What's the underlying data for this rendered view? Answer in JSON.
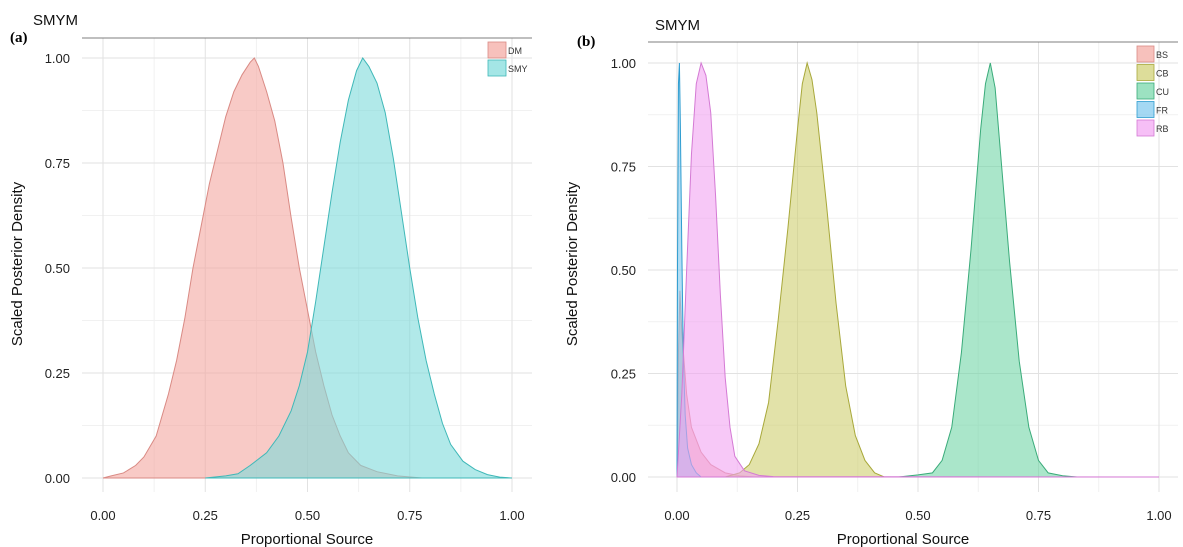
{
  "chart_data": [
    {
      "type": "area",
      "panel_label": "(a)",
      "title": "SMYM",
      "xlabel": "Proportional Source",
      "ylabel": "Scaled Posterior Density",
      "xlim": [
        0,
        1
      ],
      "ylim": [
        0,
        1
      ],
      "x_ticks": [
        "0.00",
        "0.25",
        "0.50",
        "0.75",
        "1.00"
      ],
      "y_ticks": [
        "0.00",
        "0.25",
        "0.50",
        "0.75",
        "1.00"
      ],
      "grid": true,
      "legend_position": "top-right",
      "series": [
        {
          "name": "DM",
          "fill": "#f4a6a0",
          "stroke": "#d98a84",
          "points": [
            [
              0.0,
              0.0
            ],
            [
              0.02,
              0.005
            ],
            [
              0.05,
              0.012
            ],
            [
              0.08,
              0.03
            ],
            [
              0.1,
              0.05
            ],
            [
              0.13,
              0.1
            ],
            [
              0.16,
              0.2
            ],
            [
              0.18,
              0.28
            ],
            [
              0.2,
              0.38
            ],
            [
              0.22,
              0.5
            ],
            [
              0.24,
              0.6
            ],
            [
              0.26,
              0.7
            ],
            [
              0.28,
              0.78
            ],
            [
              0.3,
              0.86
            ],
            [
              0.32,
              0.92
            ],
            [
              0.34,
              0.96
            ],
            [
              0.36,
              0.99
            ],
            [
              0.37,
              1.0
            ],
            [
              0.38,
              0.98
            ],
            [
              0.4,
              0.92
            ],
            [
              0.42,
              0.85
            ],
            [
              0.44,
              0.75
            ],
            [
              0.46,
              0.62
            ],
            [
              0.48,
              0.5
            ],
            [
              0.5,
              0.4
            ],
            [
              0.52,
              0.3
            ],
            [
              0.54,
              0.22
            ],
            [
              0.56,
              0.15
            ],
            [
              0.58,
              0.1
            ],
            [
              0.6,
              0.06
            ],
            [
              0.63,
              0.03
            ],
            [
              0.67,
              0.015
            ],
            [
              0.72,
              0.005
            ],
            [
              0.78,
              0.0
            ]
          ]
        },
        {
          "name": "SMY",
          "fill": "#7ddbdb",
          "stroke": "#3fb8b8",
          "points": [
            [
              0.25,
              0.0
            ],
            [
              0.3,
              0.005
            ],
            [
              0.33,
              0.01
            ],
            [
              0.36,
              0.03
            ],
            [
              0.4,
              0.06
            ],
            [
              0.43,
              0.1
            ],
            [
              0.46,
              0.16
            ],
            [
              0.48,
              0.22
            ],
            [
              0.5,
              0.3
            ],
            [
              0.52,
              0.42
            ],
            [
              0.54,
              0.55
            ],
            [
              0.56,
              0.68
            ],
            [
              0.58,
              0.8
            ],
            [
              0.6,
              0.9
            ],
            [
              0.62,
              0.97
            ],
            [
              0.635,
              1.0
            ],
            [
              0.65,
              0.98
            ],
            [
              0.67,
              0.94
            ],
            [
              0.69,
              0.87
            ],
            [
              0.71,
              0.76
            ],
            [
              0.73,
              0.63
            ],
            [
              0.75,
              0.5
            ],
            [
              0.77,
              0.38
            ],
            [
              0.79,
              0.28
            ],
            [
              0.81,
              0.2
            ],
            [
              0.83,
              0.13
            ],
            [
              0.85,
              0.08
            ],
            [
              0.88,
              0.04
            ],
            [
              0.91,
              0.02
            ],
            [
              0.94,
              0.008
            ],
            [
              0.97,
              0.002
            ],
            [
              1.0,
              0.0
            ]
          ]
        }
      ]
    },
    {
      "type": "area",
      "panel_label": "(b)",
      "title": "SMYM",
      "xlabel": "Proportional Source",
      "ylabel": "Scaled Posterior Density",
      "xlim": [
        0,
        1
      ],
      "ylim": [
        0,
        1
      ],
      "x_ticks": [
        "0.00",
        "0.25",
        "0.50",
        "0.75",
        "1.00"
      ],
      "y_ticks": [
        "0.00",
        "0.25",
        "0.50",
        "0.75",
        "1.00"
      ],
      "grid": true,
      "legend_position": "top-right",
      "series": [
        {
          "name": "BS",
          "fill": "#f4a6a0",
          "stroke": "#d98a84",
          "points": [
            [
              0.0,
              0.0
            ],
            [
              0.003,
              0.3
            ],
            [
              0.006,
              0.45
            ],
            [
              0.01,
              0.35
            ],
            [
              0.02,
              0.2
            ],
            [
              0.03,
              0.12
            ],
            [
              0.05,
              0.06
            ],
            [
              0.07,
              0.03
            ],
            [
              0.1,
              0.01
            ],
            [
              0.13,
              0.003
            ],
            [
              0.16,
              0.0
            ]
          ]
        },
        {
          "name": "CB",
          "fill": "#cfcf6f",
          "stroke": "#a8a83a",
          "points": [
            [
              0.1,
              0.0
            ],
            [
              0.13,
              0.01
            ],
            [
              0.15,
              0.03
            ],
            [
              0.17,
              0.08
            ],
            [
              0.19,
              0.18
            ],
            [
              0.21,
              0.38
            ],
            [
              0.23,
              0.6
            ],
            [
              0.25,
              0.84
            ],
            [
              0.26,
              0.95
            ],
            [
              0.27,
              1.0
            ],
            [
              0.28,
              0.96
            ],
            [
              0.29,
              0.88
            ],
            [
              0.31,
              0.66
            ],
            [
              0.33,
              0.42
            ],
            [
              0.35,
              0.22
            ],
            [
              0.37,
              0.1
            ],
            [
              0.39,
              0.04
            ],
            [
              0.41,
              0.01
            ],
            [
              0.43,
              0.0
            ]
          ]
        },
        {
          "name": "CU",
          "fill": "#72d6a6",
          "stroke": "#3aab7a",
          "points": [
            [
              0.46,
              0.0
            ],
            [
              0.5,
              0.005
            ],
            [
              0.53,
              0.01
            ],
            [
              0.55,
              0.04
            ],
            [
              0.57,
              0.12
            ],
            [
              0.59,
              0.3
            ],
            [
              0.61,
              0.55
            ],
            [
              0.63,
              0.84
            ],
            [
              0.64,
              0.95
            ],
            [
              0.65,
              1.0
            ],
            [
              0.66,
              0.94
            ],
            [
              0.67,
              0.8
            ],
            [
              0.69,
              0.52
            ],
            [
              0.71,
              0.28
            ],
            [
              0.73,
              0.12
            ],
            [
              0.75,
              0.04
            ],
            [
              0.77,
              0.01
            ],
            [
              0.8,
              0.003
            ],
            [
              0.83,
              0.0
            ]
          ]
        },
        {
          "name": "FR",
          "fill": "#7ec8ee",
          "stroke": "#2f9dd0",
          "points": [
            [
              0.0,
              0.0
            ],
            [
              0.001,
              0.5
            ],
            [
              0.003,
              0.95
            ],
            [
              0.005,
              1.0
            ],
            [
              0.007,
              0.85
            ],
            [
              0.01,
              0.55
            ],
            [
              0.013,
              0.3
            ],
            [
              0.017,
              0.15
            ],
            [
              0.022,
              0.07
            ],
            [
              0.03,
              0.03
            ],
            [
              0.04,
              0.01
            ],
            [
              0.05,
              0.0
            ]
          ]
        },
        {
          "name": "RB",
          "fill": "#f2a4f2",
          "stroke": "#d47ad4",
          "points": [
            [
              0.0,
              0.0
            ],
            [
              0.01,
              0.2
            ],
            [
              0.02,
              0.5
            ],
            [
              0.03,
              0.78
            ],
            [
              0.04,
              0.95
            ],
            [
              0.05,
              1.0
            ],
            [
              0.06,
              0.97
            ],
            [
              0.07,
              0.88
            ],
            [
              0.08,
              0.68
            ],
            [
              0.09,
              0.44
            ],
            [
              0.1,
              0.24
            ],
            [
              0.11,
              0.12
            ],
            [
              0.12,
              0.05
            ],
            [
              0.14,
              0.015
            ],
            [
              0.17,
              0.004
            ],
            [
              0.2,
              0.001
            ],
            [
              1.0,
              0.0
            ]
          ]
        }
      ]
    }
  ]
}
